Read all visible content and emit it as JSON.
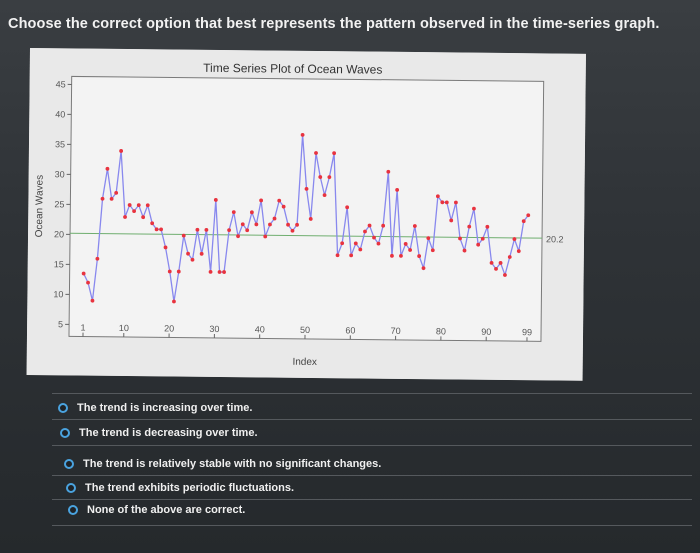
{
  "question": {
    "text": "Choose the correct option that best represents the pattern observed in the time-series graph."
  },
  "chart_data": {
    "type": "line",
    "title": "Time Series Plot of Ocean Waves",
    "xlabel": "Index",
    "ylabel": "Ocean Waves",
    "x_ticks": [
      "1",
      "10",
      "20",
      "30",
      "40",
      "50",
      "60",
      "70",
      "80",
      "90",
      "99"
    ],
    "y_ticks": [
      "5",
      "10",
      "15",
      "20",
      "25",
      "30",
      "35",
      "40",
      "45"
    ],
    "ylim": [
      5,
      45
    ],
    "xlim": [
      1,
      99
    ],
    "reference_line": {
      "value": 20.2,
      "label": "20.2"
    },
    "series": [
      {
        "line_color": "#8888ee",
        "marker_color": "#e8333f",
        "values": [
          13.5,
          12,
          9,
          16,
          26,
          31,
          26,
          27,
          34,
          23,
          25,
          24,
          25,
          23,
          25,
          22,
          21,
          21,
          18,
          14,
          9,
          14,
          20,
          17,
          16,
          21,
          17,
          21,
          14,
          26,
          14,
          14,
          21,
          24,
          20,
          22,
          21,
          24,
          22,
          26,
          20,
          22,
          23,
          26,
          25,
          22,
          21,
          22,
          37,
          28,
          23,
          34,
          30,
          27,
          30,
          34,
          17,
          19,
          25,
          17,
          19,
          18,
          21,
          22,
          20,
          19,
          22,
          31,
          17,
          28,
          17,
          19,
          18,
          22,
          17,
          15,
          20,
          18,
          27,
          26,
          26,
          23,
          26,
          20,
          18,
          22,
          25,
          19,
          20,
          22,
          16,
          15,
          16,
          14,
          17,
          20,
          18,
          23,
          24
        ]
      }
    ]
  },
  "options": [
    {
      "label": "The trend is increasing over time."
    },
    {
      "label": "The trend is decreasing over time."
    },
    {
      "label": "The trend is relatively stable with no significant changes."
    },
    {
      "label": "The trend exhibits periodic fluctuations."
    },
    {
      "label": "None of the above are correct."
    }
  ]
}
